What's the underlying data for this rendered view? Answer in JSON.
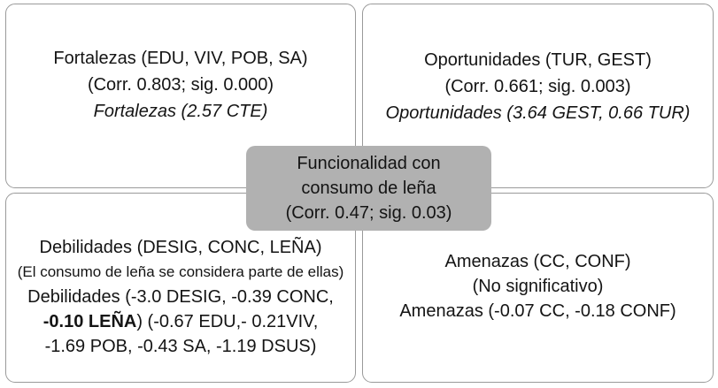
{
  "colors": {
    "center_fill": "#b1b1b1",
    "box_border": "#9a9a9a",
    "text": "#141414",
    "background": "#ffffff"
  },
  "center": {
    "line1": "Funcionalidad con",
    "line2": "consumo de leña",
    "line3": "(Corr. 0.47; sig. 0.03)"
  },
  "quadrants": {
    "fortalezas": {
      "line1": "Fortalezas (EDU, VIV, POB, SA)",
      "line2": "(Corr. 0.803; sig. 0.000)",
      "line3": "Fortalezas (2.57 CTE)"
    },
    "oportunidades": {
      "line1": "Oportunidades (TUR, GEST)",
      "line2": "(Corr. 0.661; sig. 0.003)",
      "line3": "Oportunidades (3.64 GEST, 0.66 TUR)"
    },
    "debilidades": {
      "line1": "Debilidades (DESIG, CONC, LEÑA)",
      "line2": "(El consumo de leña se considera parte de ellas)",
      "line3": "Debilidades (-3.0 DESIG, -0.39 CONC,",
      "line4_bold": "-0.10 LEÑA",
      "line4_rest": ") (-0.67 EDU,- 0.21VIV,",
      "line5": "-1.69 POB, -0.43 SA, -1.19 DSUS)"
    },
    "amenazas": {
      "line1": "Amenazas (CC, CONF)",
      "line2": "(No significativo)",
      "line3": "Amenazas (-0.07 CC, -0.18 CONF)"
    }
  }
}
